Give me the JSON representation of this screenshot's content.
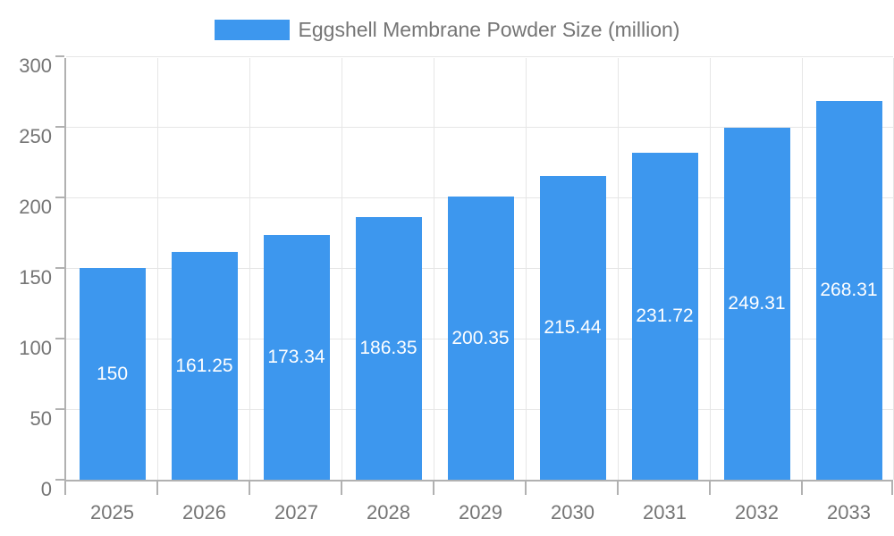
{
  "chart_data": {
    "type": "bar",
    "title": "Eggshell Membrane Powder Size (million)",
    "categories": [
      "2025",
      "2026",
      "2027",
      "2028",
      "2029",
      "2030",
      "2031",
      "2032",
      "2033"
    ],
    "values": [
      150,
      161.25,
      173.34,
      186.35,
      200.35,
      215.44,
      231.72,
      249.31,
      268.31
    ],
    "value_labels": [
      "150",
      "161.25",
      "173.34",
      "186.35",
      "200.35",
      "215.44",
      "231.72",
      "249.31",
      "268.31"
    ],
    "xlabel": "",
    "ylabel": "",
    "ylim": [
      0,
      300
    ],
    "ytick_step": 50,
    "yticks": [
      "0",
      "50",
      "100",
      "150",
      "200",
      "250",
      "300"
    ],
    "grid": "on",
    "legend_position": "top"
  },
  "colors": {
    "accent": "#3D97EE",
    "axis": "#b1b1b1",
    "grid": "#e6e6e6",
    "text": "#757575",
    "value_label": "#ffffff"
  }
}
